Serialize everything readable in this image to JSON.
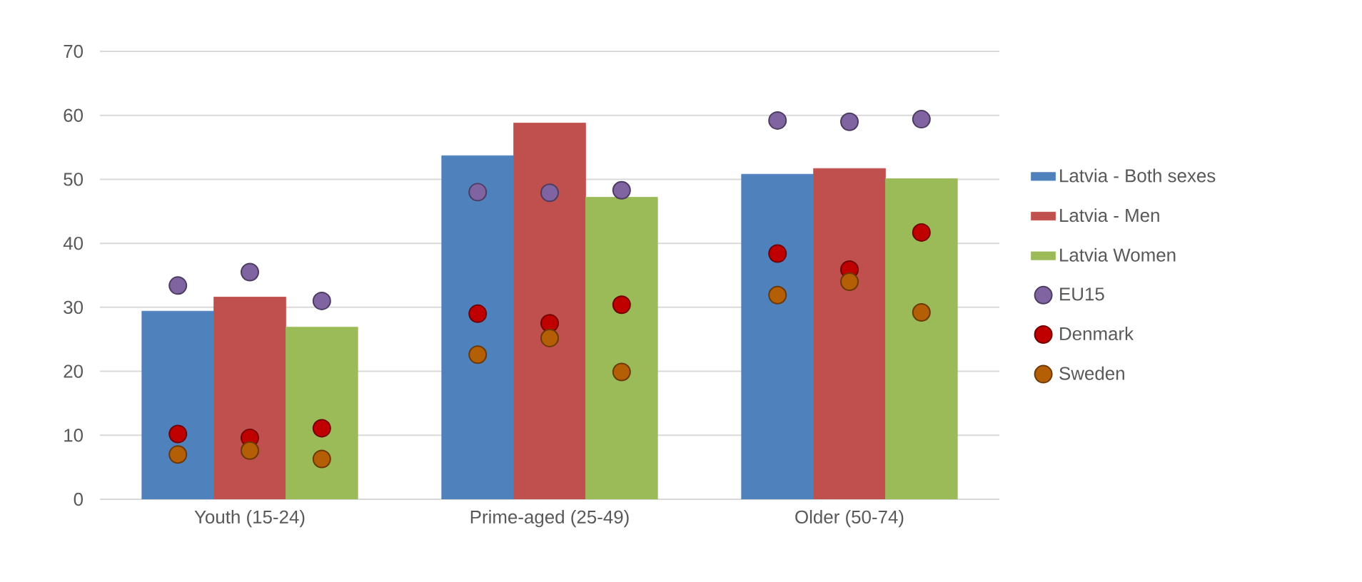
{
  "chart_data": {
    "type": "bar",
    "categories": [
      "Youth (15-24)",
      "Prime-aged (25-49)",
      "Older (50-74)"
    ],
    "series": [
      {
        "name": "Latvia - Both sexes",
        "color": "#4f81bd",
        "values": [
          29.4,
          53.7,
          50.8
        ]
      },
      {
        "name": "Latvia - Men",
        "color": "#c0504d",
        "values": [
          31.6,
          58.8,
          51.7
        ]
      },
      {
        "name": "Latvia Women",
        "color": "#9bbb59",
        "values": [
          26.9,
          47.2,
          50.1
        ]
      },
      {
        "name": "EU15",
        "type": "scatter",
        "color": "#8064a2",
        "x": [
          "Youth (15-24)",
          "Youth (15-24)",
          "Youth (15-24)",
          "Prime-aged (25-49)",
          "Prime-aged (25-49)",
          "Prime-aged (25-49)",
          "Older (50-74)",
          "Older (50-74)",
          "Older (50-74)"
        ],
        "values": [
          33.4,
          35.5,
          31.0,
          48.0,
          47.9,
          48.3,
          59.2,
          59.0,
          59.4
        ]
      },
      {
        "name": "Denmark",
        "type": "scatter",
        "color": "#c00000",
        "x": [
          "Youth (15-24)",
          "Youth (15-24)",
          "Youth (15-24)",
          "Prime-aged (25-49)",
          "Prime-aged (25-49)",
          "Prime-aged (25-49)",
          "Older (50-74)",
          "Older (50-74)",
          "Older (50-74)"
        ],
        "values": [
          10.2,
          9.6,
          11.1,
          29.0,
          27.5,
          30.4,
          38.4,
          35.9,
          41.7
        ]
      },
      {
        "name": "Sweden",
        "type": "scatter",
        "color": "#b45f06",
        "x": [
          "Youth (15-24)",
          "Youth (15-24)",
          "Youth (15-24)",
          "Prime-aged (25-49)",
          "Prime-aged (25-49)",
          "Prime-aged (25-49)",
          "Older (50-74)",
          "Older (50-74)",
          "Older (50-74)"
        ],
        "values": [
          7.0,
          7.6,
          6.3,
          22.6,
          25.2,
          19.9,
          31.9,
          34.0,
          29.2
        ]
      }
    ],
    "ylim": [
      0,
      70
    ],
    "yticks": [
      0,
      10,
      20,
      30,
      40,
      50,
      60,
      70
    ],
    "grid": "y",
    "legend": "right",
    "marker": "circle"
  }
}
